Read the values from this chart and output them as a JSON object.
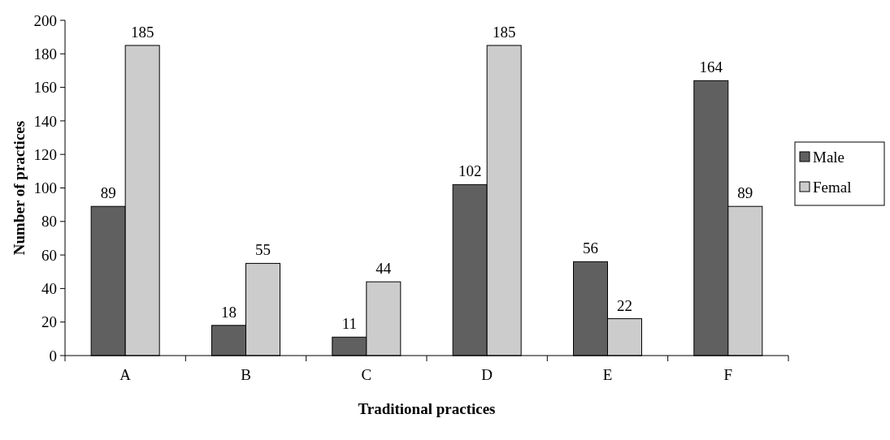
{
  "chart_data": {
    "type": "bar",
    "xlabel": "Traditional practices",
    "ylabel": "Number of practices",
    "categories": [
      "A",
      "B",
      "C",
      "D",
      "E",
      "F"
    ],
    "series": [
      {
        "name": "Male",
        "color": "#606060",
        "values": [
          89,
          18,
          11,
          102,
          56,
          164
        ]
      },
      {
        "name": "Femal",
        "color": "#cccccc",
        "values": [
          185,
          55,
          44,
          185,
          22,
          89
        ]
      }
    ],
    "ylim": [
      0,
      200
    ],
    "yticks": [
      0,
      20,
      40,
      60,
      80,
      100,
      120,
      140,
      160,
      180,
      200
    ],
    "grid": false,
    "legend": "right",
    "data_labels": true
  }
}
